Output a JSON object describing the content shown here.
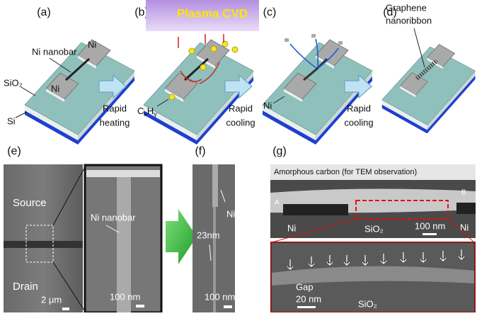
{
  "schematic": {
    "a": {
      "label": "(a)",
      "nanobar": "Ni nanobar",
      "ni_top": "Ni",
      "ni_bottom": "Ni",
      "sio2": "SiO₂",
      "si": "Si"
    },
    "b": {
      "label": "(b)",
      "plasma": "Plasma CVD",
      "precursor": [
        "C",
        "x",
        "H",
        "y"
      ]
    },
    "c": {
      "label": "(c)",
      "ni": "Ni"
    },
    "d": {
      "label": "(d)",
      "graphene": [
        "Graphene",
        "nanoribbon"
      ]
    },
    "steps": [
      [
        "Rapid",
        "heating"
      ],
      [
        "Rapid",
        "cooling"
      ],
      [
        "Rapid",
        "cooling"
      ]
    ]
  },
  "sem": {
    "e": {
      "label": "(e)",
      "source": "Source",
      "drain": "Drain",
      "scale_main": "2 μm",
      "nanobar": "Ni nanobar",
      "scale_inset": "100 nm"
    },
    "f": {
      "label": "(f)",
      "ni": "Ni",
      "width": "23nm",
      "scale": "100 nm"
    },
    "g": {
      "label": "(g)",
      "caption": "Amorphous carbon (for TEM observation)",
      "end_a": "A",
      "end_b": "B",
      "ni_left": "Ni",
      "sio2_top": "SiO₂",
      "scale_top": "100 nm",
      "ni_right": "Ni",
      "gap": "Gap",
      "scale_bottom": "20 nm",
      "sio2_bottom": "SiO₂"
    }
  }
}
